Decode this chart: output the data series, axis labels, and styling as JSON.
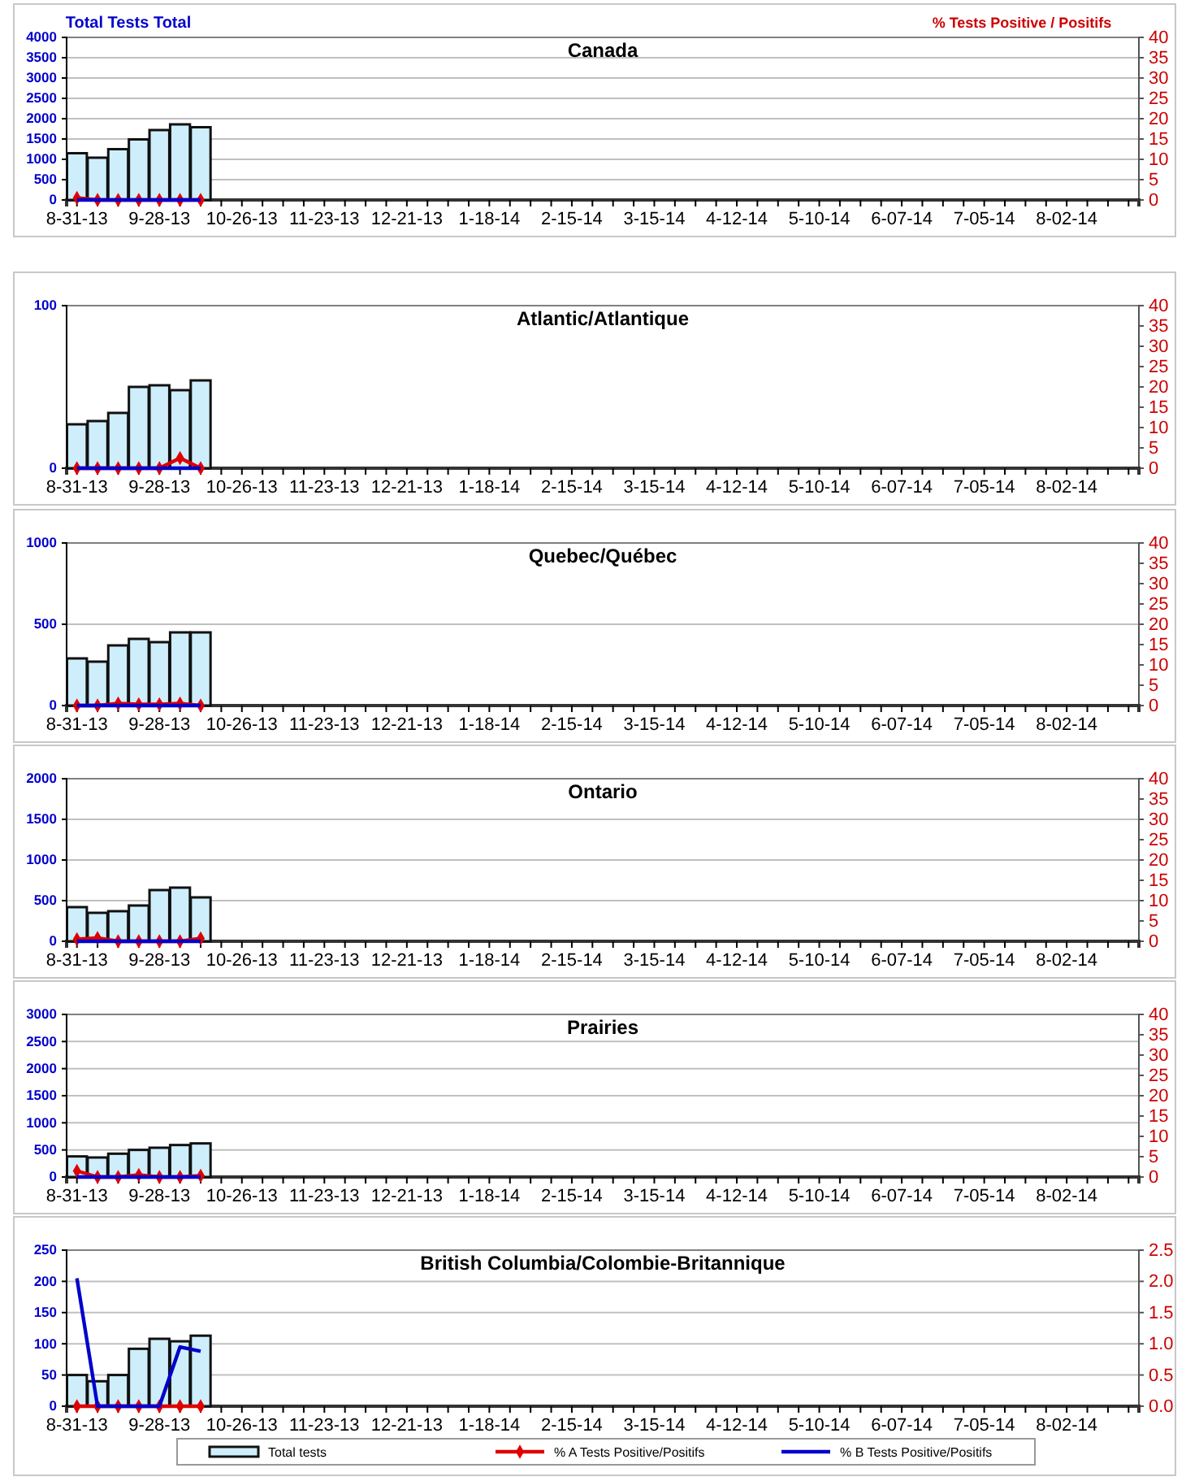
{
  "chart_data": [
    {
      "type": "bar",
      "title": "Canada",
      "ylabel": "Total Tests Total",
      "y2label": "% Tests Positive / Positifs",
      "categories": [
        "8-31-13",
        null,
        null,
        null,
        "9-28-13",
        null,
        null,
        null,
        "10-26-13",
        null,
        null,
        null,
        "11-23-13",
        null,
        null,
        null,
        "12-21-13",
        null,
        null,
        null,
        "1-18-14",
        null,
        null,
        null,
        "2-15-14",
        null,
        null,
        null,
        "3-15-14",
        null,
        null,
        null,
        "4-12-14",
        null,
        null,
        null,
        "5-10-14",
        null,
        null,
        null,
        "6-07-14",
        null,
        null,
        null,
        "7-05-14",
        null,
        null,
        null,
        "8-02-14",
        null,
        null,
        null
      ],
      "series": [
        {
          "color": "#cfeefc",
          "values": [
            1150,
            1040,
            1250,
            1490,
            1720,
            1860,
            1790,
            null,
            null,
            null,
            null,
            null,
            null,
            null,
            null,
            null,
            null,
            null,
            null,
            null,
            null,
            null,
            null,
            null,
            null,
            null,
            null,
            null,
            null,
            null,
            null,
            null,
            null,
            null,
            null,
            null,
            null,
            null,
            null,
            null,
            null,
            null,
            null,
            null,
            null,
            null,
            null,
            null,
            null,
            null,
            null,
            null
          ]
        },
        {
          "type": "line",
          "axis": "y2",
          "color": "#e00000",
          "marker": "diamond",
          "values": [
            0.5,
            0,
            0,
            0,
            0,
            0,
            0,
            null,
            null,
            null,
            null,
            null,
            null,
            null,
            null,
            null,
            null,
            null,
            null,
            null,
            null,
            null,
            null,
            null,
            null,
            null,
            null,
            null,
            null,
            null,
            null,
            null,
            null,
            null,
            null,
            null,
            null,
            null,
            null,
            null,
            null,
            null,
            null,
            null,
            null,
            null,
            null,
            null,
            null,
            null,
            null,
            null
          ]
        },
        {
          "type": "line",
          "axis": "y2",
          "color": "#0000cc",
          "marker": "none",
          "values": [
            0,
            0,
            0,
            0,
            0,
            0,
            0,
            null,
            null,
            null,
            null,
            null,
            null,
            null,
            null,
            null,
            null,
            null,
            null,
            null,
            null,
            null,
            null,
            null,
            null,
            null,
            null,
            null,
            null,
            null,
            null,
            null,
            null,
            null,
            null,
            null,
            null,
            null,
            null,
            null,
            null,
            null,
            null,
            null,
            null,
            null,
            null,
            null,
            null,
            null,
            null,
            null
          ]
        }
      ],
      "ylim": [
        0,
        4000
      ],
      "yticks": [
        0,
        500,
        1000,
        1500,
        2000,
        2500,
        3000,
        3500,
        4000
      ],
      "y2lim": [
        0,
        40
      ],
      "y2ticks": [
        0,
        5,
        10,
        15,
        20,
        25,
        30,
        35,
        40
      ],
      "grid": "y"
    },
    {
      "type": "bar",
      "title": "Atlantic/Atlantique",
      "categories": [
        "8-31-13",
        null,
        null,
        null,
        "9-28-13",
        null,
        null,
        null,
        "10-26-13",
        null,
        null,
        null,
        "11-23-13",
        null,
        null,
        null,
        "12-21-13",
        null,
        null,
        null,
        "1-18-14",
        null,
        null,
        null,
        "2-15-14",
        null,
        null,
        null,
        "3-15-14",
        null,
        null,
        null,
        "4-12-14",
        null,
        null,
        null,
        "5-10-14",
        null,
        null,
        null,
        "6-07-14",
        null,
        null,
        null,
        "7-05-14",
        null,
        null,
        null,
        "8-02-14",
        null,
        null,
        null
      ],
      "series": [
        {
          "color": "#cfeefc",
          "values": [
            27,
            29,
            34,
            50,
            51,
            48,
            54,
            null,
            null,
            null,
            null,
            null,
            null,
            null,
            null,
            null,
            null,
            null,
            null,
            null,
            null,
            null,
            null,
            null,
            null,
            null,
            null,
            null,
            null,
            null,
            null,
            null,
            null,
            null,
            null,
            null,
            null,
            null,
            null,
            null,
            null,
            null,
            null,
            null,
            null,
            null,
            null,
            null,
            null,
            null,
            null,
            null
          ]
        },
        {
          "type": "line",
          "axis": "y2",
          "color": "#e00000",
          "marker": "diamond",
          "values": [
            0,
            0,
            0,
            0,
            0,
            2.5,
            0,
            null,
            null,
            null,
            null,
            null,
            null,
            null,
            null,
            null,
            null,
            null,
            null,
            null,
            null,
            null,
            null,
            null,
            null,
            null,
            null,
            null,
            null,
            null,
            null,
            null,
            null,
            null,
            null,
            null,
            null,
            null,
            null,
            null,
            null,
            null,
            null,
            null,
            null,
            null,
            null,
            null,
            null,
            null,
            null,
            null
          ]
        },
        {
          "type": "line",
          "axis": "y2",
          "color": "#0000cc",
          "marker": "none",
          "values": [
            0,
            0,
            0,
            0,
            0,
            0,
            0,
            null,
            null,
            null,
            null,
            null,
            null,
            null,
            null,
            null,
            null,
            null,
            null,
            null,
            null,
            null,
            null,
            null,
            null,
            null,
            null,
            null,
            null,
            null,
            null,
            null,
            null,
            null,
            null,
            null,
            null,
            null,
            null,
            null,
            null,
            null,
            null,
            null,
            null,
            null,
            null,
            null,
            null,
            null,
            null,
            null
          ]
        }
      ],
      "ylim": [
        0,
        100
      ],
      "yticks": [
        0,
        100
      ],
      "y2lim": [
        0,
        40
      ],
      "y2ticks": [
        0,
        5,
        10,
        15,
        20,
        25,
        30,
        35,
        40
      ]
    },
    {
      "type": "bar",
      "title": "Quebec/Québec",
      "categories": [
        "8-31-13",
        null,
        null,
        null,
        "9-28-13",
        null,
        null,
        null,
        "10-26-13",
        null,
        null,
        null,
        "11-23-13",
        null,
        null,
        null,
        "12-21-13",
        null,
        null,
        null,
        "1-18-14",
        null,
        null,
        null,
        "2-15-14",
        null,
        null,
        null,
        "3-15-14",
        null,
        null,
        null,
        "4-12-14",
        null,
        null,
        null,
        "5-10-14",
        null,
        null,
        null,
        "6-07-14",
        null,
        null,
        null,
        "7-05-14",
        null,
        null,
        null,
        "8-02-14",
        null,
        null,
        null
      ],
      "series": [
        {
          "color": "#cfeefc",
          "values": [
            290,
            270,
            370,
            410,
            390,
            450,
            450,
            null,
            null,
            null,
            null,
            null,
            null,
            null,
            null,
            null,
            null,
            null,
            null,
            null,
            null,
            null,
            null,
            null,
            null,
            null,
            null,
            null,
            null,
            null,
            null,
            null,
            null,
            null,
            null,
            null,
            null,
            null,
            null,
            null,
            null,
            null,
            null,
            null,
            null,
            null,
            null,
            null,
            null,
            null,
            null,
            null
          ]
        },
        {
          "type": "line",
          "axis": "y2",
          "color": "#e00000",
          "marker": "diamond",
          "values": [
            0,
            0,
            0.5,
            0.3,
            0.3,
            0.5,
            0,
            null,
            null,
            null,
            null,
            null,
            null,
            null,
            null,
            null,
            null,
            null,
            null,
            null,
            null,
            null,
            null,
            null,
            null,
            null,
            null,
            null,
            null,
            null,
            null,
            null,
            null,
            null,
            null,
            null,
            null,
            null,
            null,
            null,
            null,
            null,
            null,
            null,
            null,
            null,
            null,
            null,
            null,
            null,
            null,
            null
          ]
        },
        {
          "type": "line",
          "axis": "y2",
          "color": "#0000cc",
          "marker": "none",
          "values": [
            0,
            0,
            0,
            0,
            0,
            0,
            0,
            null,
            null,
            null,
            null,
            null,
            null,
            null,
            null,
            null,
            null,
            null,
            null,
            null,
            null,
            null,
            null,
            null,
            null,
            null,
            null,
            null,
            null,
            null,
            null,
            null,
            null,
            null,
            null,
            null,
            null,
            null,
            null,
            null,
            null,
            null,
            null,
            null,
            null,
            null,
            null,
            null,
            null,
            null,
            null,
            null
          ]
        }
      ],
      "ylim": [
        0,
        1000
      ],
      "yticks": [
        0,
        500,
        1000
      ],
      "y2lim": [
        0,
        40
      ],
      "y2ticks": [
        0,
        5,
        10,
        15,
        20,
        25,
        30,
        35,
        40
      ],
      "grid": "y"
    },
    {
      "type": "bar",
      "title": "Ontario",
      "categories": [
        "8-31-13",
        null,
        null,
        null,
        "9-28-13",
        null,
        null,
        null,
        "10-26-13",
        null,
        null,
        null,
        "11-23-13",
        null,
        null,
        null,
        "12-21-13",
        null,
        null,
        null,
        "1-18-14",
        null,
        null,
        null,
        "2-15-14",
        null,
        null,
        null,
        "3-15-14",
        null,
        null,
        null,
        "4-12-14",
        null,
        null,
        null,
        "5-10-14",
        null,
        null,
        null,
        "6-07-14",
        null,
        null,
        null,
        "7-05-14",
        null,
        null,
        null,
        "8-02-14",
        null,
        null,
        null
      ],
      "series": [
        {
          "color": "#cfeefc",
          "values": [
            420,
            350,
            370,
            440,
            630,
            660,
            540,
            null,
            null,
            null,
            null,
            null,
            null,
            null,
            null,
            null,
            null,
            null,
            null,
            null,
            null,
            null,
            null,
            null,
            null,
            null,
            null,
            null,
            null,
            null,
            null,
            null,
            null,
            null,
            null,
            null,
            null,
            null,
            null,
            null,
            null,
            null,
            null,
            null,
            null,
            null,
            null,
            null,
            null,
            null,
            null,
            null
          ]
        },
        {
          "type": "line",
          "axis": "y2",
          "color": "#e00000",
          "marker": "diamond",
          "values": [
            0.5,
            0.8,
            0,
            0,
            0,
            0,
            0.7,
            null,
            null,
            null,
            null,
            null,
            null,
            null,
            null,
            null,
            null,
            null,
            null,
            null,
            null,
            null,
            null,
            null,
            null,
            null,
            null,
            null,
            null,
            null,
            null,
            null,
            null,
            null,
            null,
            null,
            null,
            null,
            null,
            null,
            null,
            null,
            null,
            null,
            null,
            null,
            null,
            null,
            null,
            null,
            null,
            null
          ]
        },
        {
          "type": "line",
          "axis": "y2",
          "color": "#0000cc",
          "marker": "none",
          "values": [
            0,
            0,
            0,
            0,
            0,
            0,
            0,
            null,
            null,
            null,
            null,
            null,
            null,
            null,
            null,
            null,
            null,
            null,
            null,
            null,
            null,
            null,
            null,
            null,
            null,
            null,
            null,
            null,
            null,
            null,
            null,
            null,
            null,
            null,
            null,
            null,
            null,
            null,
            null,
            null,
            null,
            null,
            null,
            null,
            null,
            null,
            null,
            null,
            null,
            null,
            null,
            null
          ]
        }
      ],
      "ylim": [
        0,
        2000
      ],
      "yticks": [
        0,
        500,
        1000,
        1500,
        2000
      ],
      "y2lim": [
        0,
        40
      ],
      "y2ticks": [
        0,
        5,
        10,
        15,
        20,
        25,
        30,
        35,
        40
      ],
      "grid": "y"
    },
    {
      "type": "bar",
      "title": "Prairies",
      "categories": [
        "8-31-13",
        null,
        null,
        null,
        "9-28-13",
        null,
        null,
        null,
        "10-26-13",
        null,
        null,
        null,
        "11-23-13",
        null,
        null,
        null,
        "12-21-13",
        null,
        null,
        null,
        "1-18-14",
        null,
        null,
        null,
        "2-15-14",
        null,
        null,
        null,
        "3-15-14",
        null,
        null,
        null,
        "4-12-14",
        null,
        null,
        null,
        "5-10-14",
        null,
        null,
        null,
        "6-07-14",
        null,
        null,
        null,
        "7-05-14",
        null,
        null,
        null,
        "8-02-14",
        null,
        null,
        null
      ],
      "series": [
        {
          "color": "#cfeefc",
          "values": [
            380,
            360,
            430,
            500,
            540,
            590,
            620,
            null,
            null,
            null,
            null,
            null,
            null,
            null,
            null,
            null,
            null,
            null,
            null,
            null,
            null,
            null,
            null,
            null,
            null,
            null,
            null,
            null,
            null,
            null,
            null,
            null,
            null,
            null,
            null,
            null,
            null,
            null,
            null,
            null,
            null,
            null,
            null,
            null,
            null,
            null,
            null,
            null,
            null,
            null,
            null,
            null
          ]
        },
        {
          "type": "line",
          "axis": "y2",
          "color": "#e00000",
          "marker": "diamond",
          "values": [
            1.5,
            0,
            0,
            0.5,
            0,
            0,
            0.3,
            null,
            null,
            null,
            null,
            null,
            null,
            null,
            null,
            null,
            null,
            null,
            null,
            null,
            null,
            null,
            null,
            null,
            null,
            null,
            null,
            null,
            null,
            null,
            null,
            null,
            null,
            null,
            null,
            null,
            null,
            null,
            null,
            null,
            null,
            null,
            null,
            null,
            null,
            null,
            null,
            null,
            null,
            null,
            null,
            null
          ]
        },
        {
          "type": "line",
          "axis": "y2",
          "color": "#0000cc",
          "marker": "none",
          "values": [
            0,
            0,
            0,
            0,
            0,
            0,
            0,
            null,
            null,
            null,
            null,
            null,
            null,
            null,
            null,
            null,
            null,
            null,
            null,
            null,
            null,
            null,
            null,
            null,
            null,
            null,
            null,
            null,
            null,
            null,
            null,
            null,
            null,
            null,
            null,
            null,
            null,
            null,
            null,
            null,
            null,
            null,
            null,
            null,
            null,
            null,
            null,
            null,
            null,
            null,
            null,
            null
          ]
        }
      ],
      "ylim": [
        0,
        3000
      ],
      "yticks": [
        0,
        500,
        1000,
        1500,
        2000,
        2500,
        3000
      ],
      "y2lim": [
        0,
        40
      ],
      "y2ticks": [
        0,
        5,
        10,
        15,
        20,
        25,
        30,
        35,
        40
      ],
      "grid": "y"
    },
    {
      "type": "bar",
      "title": "British Columbia/Colombie-Britannique",
      "categories": [
        "8-31-13",
        null,
        null,
        null,
        "9-28-13",
        null,
        null,
        null,
        "10-26-13",
        null,
        null,
        null,
        "11-23-13",
        null,
        null,
        null,
        "12-21-13",
        null,
        null,
        null,
        "1-18-14",
        null,
        null,
        null,
        "2-15-14",
        null,
        null,
        null,
        "3-15-14",
        null,
        null,
        null,
        "4-12-14",
        null,
        null,
        null,
        "5-10-14",
        null,
        null,
        null,
        "6-07-14",
        null,
        null,
        null,
        "7-05-14",
        null,
        null,
        null,
        "8-02-14",
        null,
        null,
        null
      ],
      "series": [
        {
          "name": "Total tests",
          "color": "#cfeefc",
          "values": [
            50,
            40,
            50,
            92,
            108,
            104,
            113,
            null,
            null,
            null,
            null,
            null,
            null,
            null,
            null,
            null,
            null,
            null,
            null,
            null,
            null,
            null,
            null,
            null,
            null,
            null,
            null,
            null,
            null,
            null,
            null,
            null,
            null,
            null,
            null,
            null,
            null,
            null,
            null,
            null,
            null,
            null,
            null,
            null,
            null,
            null,
            null,
            null,
            null,
            null,
            null,
            null
          ]
        },
        {
          "type": "line",
          "axis": "y2",
          "name": "% A Tests Positive/Positifs",
          "color": "#e00000",
          "marker": "diamond",
          "values": [
            0,
            0,
            0,
            0,
            0,
            0,
            0,
            null,
            null,
            null,
            null,
            null,
            null,
            null,
            null,
            null,
            null,
            null,
            null,
            null,
            null,
            null,
            null,
            null,
            null,
            null,
            null,
            null,
            null,
            null,
            null,
            null,
            null,
            null,
            null,
            null,
            null,
            null,
            null,
            null,
            null,
            null,
            null,
            null,
            null,
            null,
            null,
            null,
            null,
            null,
            null,
            null
          ]
        },
        {
          "type": "line",
          "axis": "y2",
          "name": "% B Tests Positive/Positifs",
          "color": "#0000cc",
          "marker": "none",
          "values": [
            2.05,
            0,
            0,
            0,
            0,
            0.95,
            0.88,
            null,
            null,
            null,
            null,
            null,
            null,
            null,
            null,
            null,
            null,
            null,
            null,
            null,
            null,
            null,
            null,
            null,
            null,
            null,
            null,
            null,
            null,
            null,
            null,
            null,
            null,
            null,
            null,
            null,
            null,
            null,
            null,
            null,
            null,
            null,
            null,
            null,
            null,
            null,
            null,
            null,
            null,
            null,
            null,
            null
          ]
        }
      ],
      "ylim": [
        0,
        250
      ],
      "yticks": [
        0,
        50,
        100,
        150,
        200,
        250
      ],
      "y2lim": [
        0,
        2.5
      ],
      "y2ticks": [
        {
          "value": 0,
          "label": "0.0"
        },
        {
          "value": 0.5,
          "label": "0.5"
        },
        {
          "value": 1,
          "label": "1.0"
        },
        {
          "value": 1.5,
          "label": "1.5"
        },
        {
          "value": 2,
          "label": "2.0"
        },
        {
          "value": 2.5,
          "label": "2.5"
        }
      ],
      "grid": "y",
      "legend": "bottom"
    }
  ]
}
